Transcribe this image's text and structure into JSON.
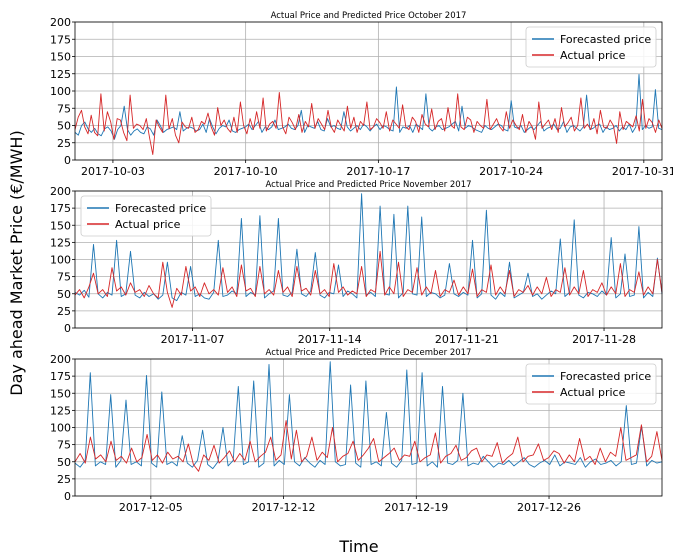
{
  "figure": {
    "ylabel": "Day ahead Market Price (€/MWH)",
    "xlabel": "Time"
  },
  "chart_data": [
    {
      "type": "line",
      "title": "Actual Price and Predicted Price October 2017",
      "x_range": [
        "2017-10-01",
        "2017-10-31 23:00"
      ],
      "ylim": [
        0,
        200
      ],
      "yticks": [
        0,
        25,
        50,
        75,
        100,
        125,
        150,
        175,
        200
      ],
      "xticks": [
        "2017-10-03",
        "2017-10-10",
        "2017-10-17",
        "2017-10-24",
        "2017-10-31"
      ],
      "grid": true,
      "legend_position": "upper-right",
      "series": [
        {
          "name": "Forecasted price",
          "color": "#1f77b4",
          "values": [
            40,
            36,
            50,
            55,
            45,
            40,
            46,
            38,
            35,
            45,
            48,
            42,
            30,
            44,
            50,
            78,
            44,
            36,
            42,
            45,
            40,
            38,
            48,
            45,
            36,
            58,
            50,
            40,
            44,
            46,
            48,
            44,
            70,
            42,
            46,
            48,
            46,
            42,
            44,
            52,
            40,
            60,
            48,
            38,
            46,
            50,
            48,
            58,
            42,
            40,
            44,
            46,
            48,
            52,
            44,
            50,
            56,
            40,
            48,
            44,
            48,
            58,
            44,
            46,
            48,
            52,
            46,
            44,
            50,
            72,
            40,
            50,
            48,
            46,
            56,
            44,
            42,
            60,
            48,
            50,
            46,
            44,
            70,
            48,
            42,
            46,
            50,
            44,
            52,
            48,
            42,
            48,
            52,
            44,
            50,
            48,
            44,
            42,
            106,
            40,
            48,
            46,
            50,
            40,
            52,
            48,
            44,
            96,
            46,
            42,
            48,
            50,
            44,
            46,
            48,
            52,
            56,
            42,
            78,
            46,
            50,
            48,
            44,
            42,
            40,
            50,
            46,
            44,
            48,
            52,
            50,
            44,
            42,
            86,
            48,
            46,
            50,
            40,
            44,
            48,
            44,
            50,
            56,
            42,
            46,
            48,
            52,
            44,
            46,
            56,
            40,
            48,
            50,
            46,
            42,
            48,
            94,
            44,
            46,
            50,
            52,
            40,
            48,
            44,
            46,
            50,
            42,
            48,
            44,
            52,
            40,
            48,
            124,
            44,
            50,
            46,
            48,
            102,
            46,
            44
          ]
        },
        {
          "name": "Actual price",
          "color": "#d62728",
          "values": [
            44,
            62,
            72,
            48,
            38,
            65,
            40,
            35,
            96,
            42,
            70,
            55,
            30,
            60,
            58,
            40,
            28,
            94,
            46,
            52,
            50,
            44,
            60,
            32,
            8,
            58,
            48,
            40,
            94,
            45,
            60,
            36,
            25,
            55,
            48,
            46,
            62,
            40,
            44,
            56,
            52,
            68,
            48,
            36,
            76,
            50,
            58,
            46,
            40,
            62,
            40,
            84,
            50,
            38,
            60,
            44,
            70,
            46,
            90,
            42,
            52,
            56,
            46,
            98,
            48,
            38,
            62,
            54,
            44,
            66,
            40,
            56,
            48,
            82,
            46,
            60,
            52,
            44,
            72,
            48,
            40,
            58,
            50,
            42,
            78,
            46,
            62,
            40,
            56,
            50,
            84,
            44,
            48,
            60,
            54,
            46,
            70,
            42,
            58,
            52,
            46,
            80,
            48,
            44,
            62,
            56,
            40,
            66,
            52,
            48,
            74,
            44,
            56,
            60,
            42,
            76,
            50,
            46,
            96,
            48,
            44,
            62,
            58,
            40,
            56,
            50,
            46,
            88,
            44,
            52,
            60,
            48,
            42,
            70,
            46,
            58,
            50,
            44,
            66,
            40,
            56,
            48,
            30,
            84,
            46,
            52,
            58,
            44,
            60,
            40,
            76,
            48,
            54,
            62,
            42,
            50,
            90,
            46,
            52,
            44,
            60,
            38,
            72,
            48,
            46,
            58,
            50,
            24,
            70,
            44,
            56,
            52,
            48,
            64,
            42,
            88,
            46,
            60,
            54,
            40,
            58,
            46
          ]
        }
      ]
    },
    {
      "type": "line",
      "title": "Actual Price and Predicted Price November 2017",
      "x_range": [
        "2017-11-01",
        "2017-11-30 23:00"
      ],
      "ylim": [
        0,
        200
      ],
      "yticks": [
        0,
        25,
        50,
        75,
        100,
        125,
        150,
        175,
        200
      ],
      "xticks": [
        "2017-11-07",
        "2017-11-14",
        "2017-11-21",
        "2017-11-28"
      ],
      "grid": true,
      "legend_position": "upper-left",
      "series": [
        {
          "name": "Forecasted price",
          "color": "#1f77b4",
          "values": [
            52,
            48,
            55,
            45,
            122,
            50,
            44,
            52,
            48,
            128,
            46,
            50,
            112,
            48,
            44,
            52,
            46,
            50,
            42,
            48,
            96,
            44,
            40,
            52,
            48,
            90,
            46,
            50,
            44,
            42,
            52,
            128,
            46,
            48,
            54,
            50,
            160,
            46,
            52,
            48,
            164,
            44,
            50,
            54,
            160,
            48,
            46,
            52,
            115,
            50,
            46,
            54,
            110,
            48,
            44,
            52,
            50,
            92,
            46,
            54,
            50,
            44,
            196,
            48,
            52,
            46,
            178,
            50,
            48,
            166,
            44,
            52,
            178,
            50,
            48,
            162,
            46,
            52,
            50,
            44,
            48,
            94,
            50,
            46,
            52,
            48,
            128,
            44,
            50,
            172,
            48,
            42,
            52,
            46,
            96,
            44,
            48,
            52,
            80,
            46,
            50,
            42,
            48,
            54,
            50,
            130,
            46,
            52,
            158,
            48,
            44,
            52,
            50,
            46,
            54,
            48,
            132,
            44,
            50,
            108,
            46,
            48,
            148,
            44,
            52,
            46,
            102,
            50
          ]
        },
        {
          "name": "Actual price",
          "color": "#d62728",
          "values": [
            48,
            56,
            44,
            60,
            80,
            50,
            56,
            46,
            88,
            54,
            60,
            48,
            66,
            52,
            56,
            46,
            62,
            50,
            44,
            96,
            52,
            30,
            58,
            48,
            90,
            54,
            60,
            46,
            66,
            50,
            56,
            48,
            88,
            52,
            60,
            46,
            92,
            54,
            58,
            46,
            90,
            50,
            56,
            48,
            84,
            52,
            60,
            46,
            90,
            54,
            58,
            48,
            84,
            50,
            56,
            46,
            94,
            52,
            60,
            48,
            54,
            50,
            90,
            46,
            56,
            52,
            112,
            48,
            60,
            50,
            96,
            46,
            56,
            52,
            88,
            48,
            60,
            50,
            84,
            46,
            56,
            52,
            70,
            48,
            60,
            50,
            86,
            46,
            56,
            52,
            92,
            48,
            60,
            50,
            84,
            46,
            56,
            52,
            62,
            48,
            60,
            50,
            74,
            46,
            56,
            52,
            88,
            48,
            60,
            50,
            84,
            46,
            56,
            52,
            66,
            48,
            60,
            50,
            94,
            46,
            56,
            52,
            82,
            48,
            60,
            50,
            100,
            52
          ]
        }
      ]
    },
    {
      "type": "line",
      "title": "Actual Price and Predicted Price December 2017",
      "x_range": [
        "2017-12-01",
        "2017-12-31 23:00"
      ],
      "ylim": [
        0,
        200
      ],
      "yticks": [
        0,
        25,
        50,
        75,
        100,
        125,
        150,
        175,
        200
      ],
      "xticks": [
        "2017-12-05",
        "2017-12-12",
        "2017-12-19",
        "2017-12-26"
      ],
      "grid": true,
      "legend_position": "upper-right",
      "series": [
        {
          "name": "Forecasted price",
          "color": "#1f77b4",
          "values": [
            48,
            42,
            52,
            180,
            44,
            50,
            46,
            148,
            42,
            52,
            140,
            46,
            50,
            44,
            176,
            48,
            42,
            152,
            46,
            50,
            44,
            88,
            48,
            42,
            52,
            96,
            46,
            40,
            50,
            100,
            44,
            52,
            160,
            46,
            50,
            168,
            42,
            48,
            192,
            44,
            52,
            46,
            148,
            50,
            44,
            56,
            48,
            42,
            52,
            46,
            196,
            50,
            44,
            46,
            162,
            48,
            42,
            168,
            46,
            50,
            44,
            122,
            48,
            42,
            52,
            184,
            46,
            48,
            180,
            44,
            50,
            42,
            160,
            48,
            46,
            52,
            150,
            44,
            48,
            46,
            58,
            50,
            42,
            48,
            46,
            52,
            44,
            50,
            56,
            46,
            42,
            48,
            52,
            46,
            60,
            44,
            50,
            48,
            46,
            56,
            42,
            50,
            54,
            46,
            48,
            52,
            44,
            50,
            132,
            46,
            48,
            102,
            44,
            52,
            48,
            50
          ]
        },
        {
          "name": "Actual price",
          "color": "#d62728",
          "values": [
            50,
            62,
            48,
            86,
            54,
            60,
            50,
            80,
            52,
            58,
            48,
            70,
            50,
            56,
            90,
            52,
            60,
            48,
            64,
            54,
            58,
            50,
            76,
            46,
            36,
            60,
            52,
            74,
            48,
            56,
            66,
            50,
            62,
            52,
            80,
            50,
            58,
            64,
            86,
            52,
            60,
            110,
            54,
            96,
            50,
            58,
            86,
            52,
            64,
            56,
            100,
            50,
            58,
            62,
            80,
            52,
            60,
            70,
            84,
            50,
            56,
            62,
            70,
            52,
            60,
            58,
            80,
            50,
            56,
            60,
            92,
            48,
            58,
            62,
            74,
            52,
            56,
            66,
            70,
            50,
            60,
            58,
            78,
            48,
            56,
            62,
            86,
            50,
            58,
            60,
            76,
            52,
            56,
            66,
            62,
            48,
            60,
            50,
            84,
            52,
            58,
            46,
            70,
            50,
            64,
            58,
            100,
            52,
            56,
            60,
            104,
            50,
            58,
            94,
            52
          ]
        }
      ]
    }
  ]
}
